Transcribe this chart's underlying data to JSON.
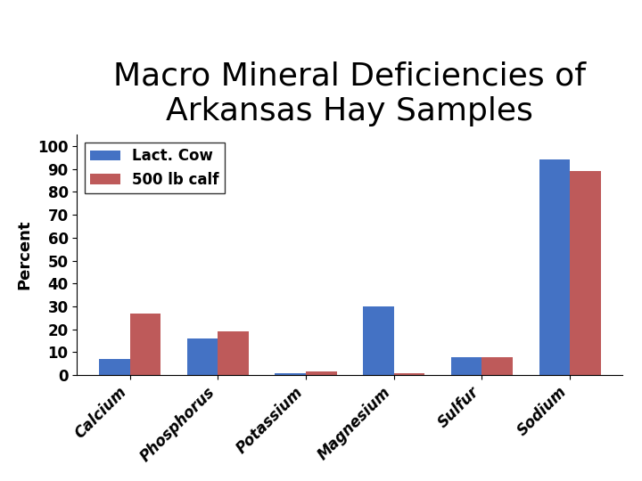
{
  "title_line1": "Macro Mineral Deficiencies of",
  "title_line2": "Arkansas Hay Samples",
  "categories": [
    "Calcium",
    "Phosphorus",
    "Potassium",
    "Magnesium",
    "Sulfur",
    "Sodium"
  ],
  "lact_cow": [
    7,
    16,
    1,
    30,
    8,
    94
  ],
  "calf_500lb": [
    27,
    19,
    1.5,
    1,
    8,
    89
  ],
  "lact_cow_color": "#4472C4",
  "calf_color": "#BE5A5A",
  "ylabel": "Percent",
  "yticks": [
    0,
    10,
    20,
    30,
    40,
    50,
    60,
    70,
    80,
    90,
    100
  ],
  "legend_labels": [
    "Lact. Cow",
    "500 lb calf"
  ],
  "bar_width": 0.35,
  "title_fontsize": 26,
  "ylabel_fontsize": 13,
  "tick_fontsize": 12,
  "legend_fontsize": 12
}
